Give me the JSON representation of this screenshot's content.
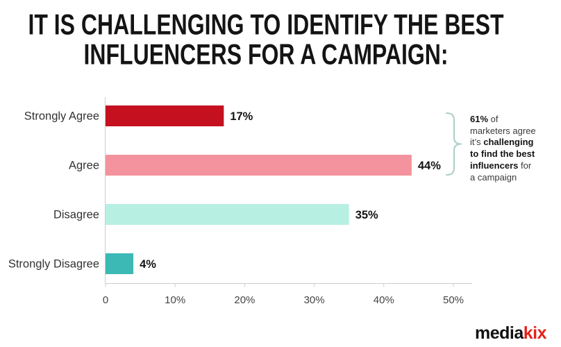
{
  "chart_data": {
    "type": "bar",
    "orientation": "horizontal",
    "title": "IT IS CHALLENGING TO IDENTIFY THE BEST INFLUENCERS FOR A CAMPAIGN:",
    "categories": [
      "Strongly Agree",
      "Agree",
      "Disagree",
      "Strongly Disagree"
    ],
    "values": [
      17,
      44,
      35,
      4
    ],
    "value_labels": [
      "17%",
      "44%",
      "35%",
      "4%"
    ],
    "colors": [
      "#c5111f",
      "#f4939d",
      "#b8efe3",
      "#3cb9b5"
    ],
    "xlim": [
      0,
      50
    ],
    "x_ticks": [
      0,
      10,
      20,
      30,
      40,
      50
    ],
    "x_tick_labels": [
      "0",
      "10%",
      "20%",
      "30%",
      "40%",
      "50%"
    ],
    "grid": false,
    "legend": "none",
    "annotation": {
      "lines": [
        [
          {
            "text": "61%",
            "bold": true
          },
          {
            "text": " of",
            "bold": false
          }
        ],
        [
          {
            "text": "marketers agree",
            "bold": false
          }
        ],
        [
          {
            "text": "it’s ",
            "bold": false
          },
          {
            "text": "challenging",
            "bold": true
          }
        ],
        [
          {
            "text": "to find the best",
            "bold": true
          }
        ],
        [
          {
            "text": "influencers",
            "bold": true
          },
          {
            "text": " for",
            "bold": false
          }
        ],
        [
          {
            "text": "a campaign",
            "bold": false
          }
        ]
      ]
    }
  },
  "brand": {
    "logo_main": "media",
    "logo_accent": "kix",
    "accent_color": "#e2231a"
  }
}
